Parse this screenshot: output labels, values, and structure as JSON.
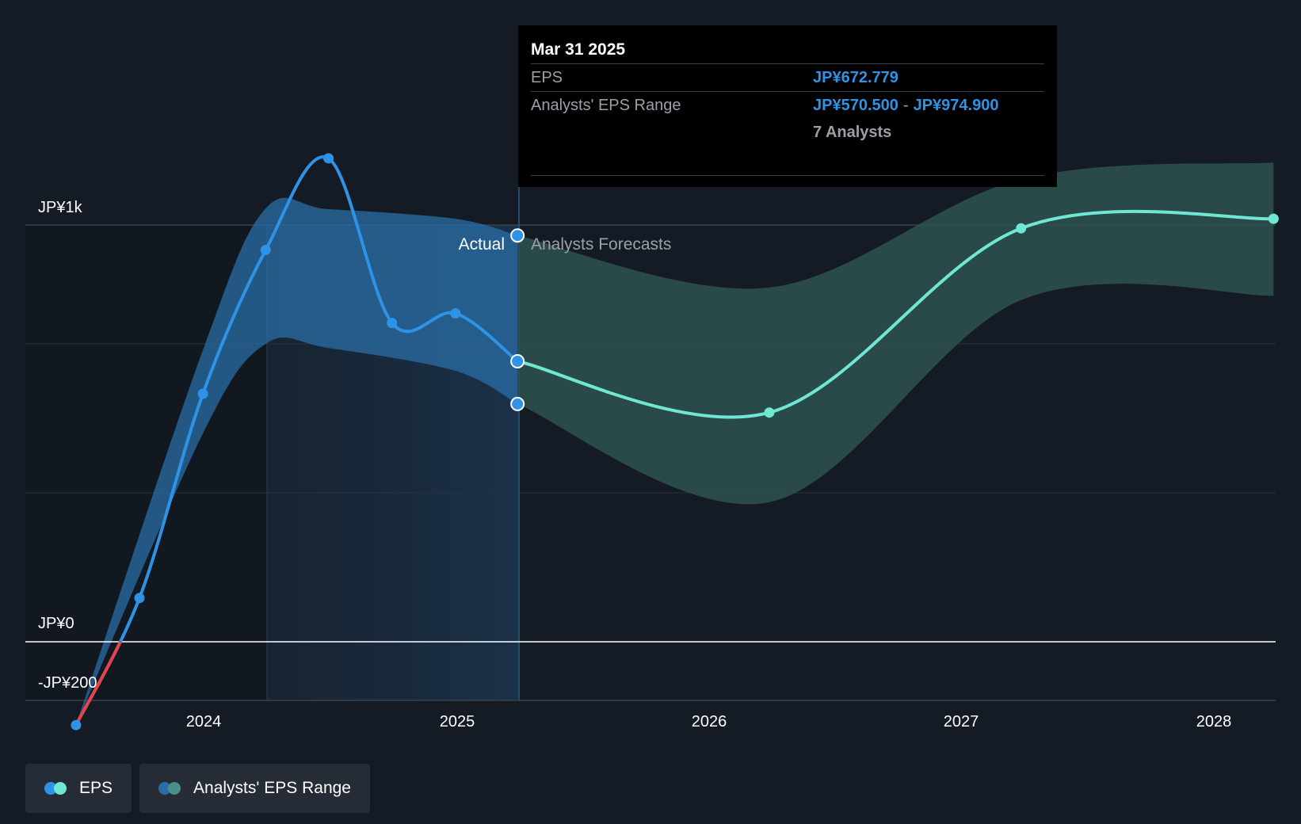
{
  "chart_data": {
    "type": "line",
    "y_axis": {
      "tick_labels": [
        "JP¥1k",
        "JP¥0",
        "-JP¥200"
      ],
      "ylim": [
        -200,
        1000
      ]
    },
    "x_axis": {
      "tick_labels": [
        "2024",
        "2025",
        "2026",
        "2027",
        "2028"
      ]
    },
    "region_labels": {
      "actual": "Actual",
      "forecast": "Analysts Forecasts"
    },
    "series": [
      {
        "name": "EPS",
        "kind": "actual",
        "points": [
          {
            "x": "2023-06-30",
            "y": -200
          },
          {
            "x": "2023-09-30",
            "y": 105
          },
          {
            "x": "2023-12-31",
            "y": 595
          },
          {
            "x": "2024-03-31",
            "y": 940
          },
          {
            "x": "2024-06-30",
            "y": 1160
          },
          {
            "x": "2024-09-30",
            "y": 765
          },
          {
            "x": "2024-12-31",
            "y": 788
          },
          {
            "x": "2025-03-31",
            "y": 673
          }
        ]
      },
      {
        "name": "EPS",
        "kind": "forecast",
        "points": [
          {
            "x": "2025-03-31",
            "y": 673
          },
          {
            "x": "2026-03-31",
            "y": 550
          },
          {
            "x": "2027-03-31",
            "y": 992
          },
          {
            "x": "2028-03-31",
            "y": 1015
          }
        ]
      },
      {
        "name": "Analysts' EPS Range",
        "kind": "range",
        "points": [
          {
            "x": "2023-06-30",
            "low": -200,
            "high": -200
          },
          {
            "x": "2023-12-31",
            "low": 500,
            "high": 700
          },
          {
            "x": "2024-03-31",
            "low": 715,
            "high": 1040
          },
          {
            "x": "2024-06-30",
            "low": 705,
            "high": 1038
          },
          {
            "x": "2024-12-31",
            "low": 650,
            "high": 1015
          },
          {
            "x": "2025-03-31",
            "low": 570.5,
            "high": 974.9
          },
          {
            "x": "2026-03-31",
            "low": 335,
            "high": 850
          },
          {
            "x": "2027-03-31",
            "low": 820,
            "high": 1110
          },
          {
            "x": "2028-03-31",
            "low": 830,
            "high": 1150
          }
        ]
      }
    ]
  },
  "tooltip": {
    "date": "Mar 31 2025",
    "eps_label": "EPS",
    "eps_value": "JP¥672.779",
    "range_label": "Analysts' EPS Range",
    "range_low": "JP¥570.500",
    "range_sep": "-",
    "range_high": "JP¥974.900",
    "analysts": "7 Analysts"
  },
  "legend": {
    "eps": "EPS",
    "range": "Analysts' EPS Range"
  },
  "colors": {
    "background": "#151b24",
    "eps_actual": "#2e93e6",
    "eps_forecast": "#6ee7d3",
    "negative": "#e8424a",
    "range_actual": "#2a6ea5",
    "range_forecast": "#2e5150",
    "legend_dot_range_a": "#2a6ea5",
    "legend_dot_range_b": "#4a8f88"
  }
}
